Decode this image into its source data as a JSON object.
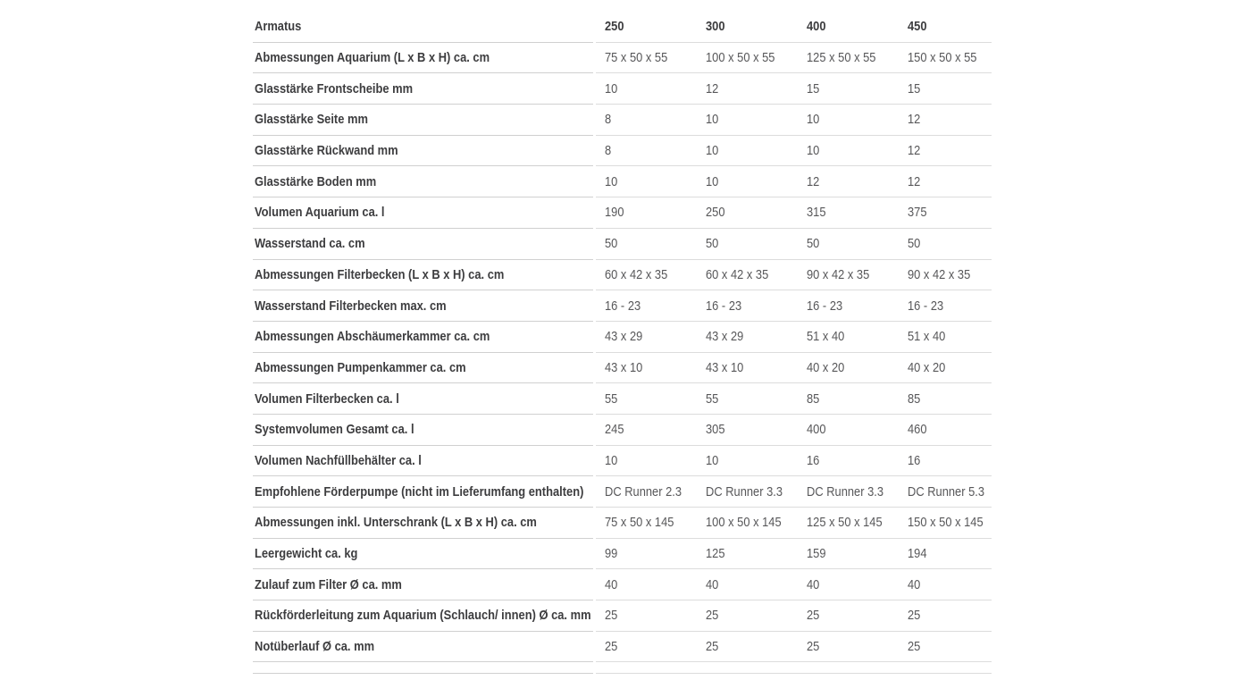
{
  "header": {
    "label": "Armatus",
    "columns": [
      "250",
      "300",
      "400",
      "450"
    ]
  },
  "rows": [
    {
      "label": "Abmessungen Aquarium (L x B x H) ca. cm",
      "values": [
        "75 x 50 x 55",
        "100 x 50 x 55",
        "125 x 50 x 55",
        "150 x 50 x 55"
      ]
    },
    {
      "label": "Glasstärke Frontscheibe mm",
      "values": [
        "10",
        "12",
        "15",
        "15"
      ]
    },
    {
      "label": "Glasstärke Seite mm",
      "values": [
        "8",
        "10",
        "10",
        "12"
      ]
    },
    {
      "label": "Glasstärke Rückwand mm",
      "values": [
        "8",
        "10",
        "10",
        "12"
      ]
    },
    {
      "label": "Glasstärke Boden mm",
      "values": [
        "10",
        "10",
        "12",
        "12"
      ]
    },
    {
      "label": "Volumen Aquarium ca. l",
      "values": [
        "190",
        "250",
        "315",
        "375"
      ]
    },
    {
      "label": "Wasserstand ca. cm",
      "values": [
        "50",
        "50",
        "50",
        "50"
      ]
    },
    {
      "label": "Abmessungen Filterbecken (L x B x H) ca. cm",
      "values": [
        "60 x 42 x 35",
        "60 x 42 x 35",
        "90 x 42 x 35",
        "90 x 42 x 35"
      ]
    },
    {
      "label": "Wasserstand Filterbecken max. cm",
      "values": [
        "16 - 23",
        "16 - 23",
        "16 - 23",
        "16 - 23"
      ]
    },
    {
      "label": "Abmessungen Abschäumerkammer ca. cm",
      "values": [
        "43 x 29",
        "43 x 29",
        "51 x 40",
        "51 x 40"
      ]
    },
    {
      "label": "Abmessungen Pumpenkammer ca. cm",
      "values": [
        "43 x 10",
        "43 x 10",
        "40 x 20",
        "40 x 20"
      ]
    },
    {
      "label": "Volumen Filterbecken ca. l",
      "values": [
        "55",
        "55",
        "85",
        "85"
      ]
    },
    {
      "label": "Systemvolumen Gesamt ca. l",
      "values": [
        "245",
        "305",
        "400",
        "460"
      ]
    },
    {
      "label": "Volumen Nachfüllbehälter ca. l",
      "values": [
        "10",
        "10",
        "16",
        "16"
      ]
    },
    {
      "label": "Empfohlene Förderpumpe (nicht im Lieferumfang enthalten)",
      "values": [
        "DC Runner 2.3",
        "DC Runner 3.3",
        "DC Runner 3.3",
        "DC Runner 5.3"
      ]
    },
    {
      "label": "Abmessungen inkl. Unterschrank (L x B x H) ca. cm",
      "values": [
        "75 x 50 x 145",
        "100 x 50 x 145",
        "125 x 50 x 145",
        "150 x 50 x 145"
      ]
    },
    {
      "label": "Leergewicht ca. kg",
      "values": [
        "99",
        "125",
        "159",
        "194"
      ]
    },
    {
      "label": "Zulauf zum Filter Ø ca. mm",
      "values": [
        "40",
        "40",
        "40",
        "40"
      ]
    },
    {
      "label": "Rückförderleitung zum Aquarium (Schlauch/ innen) Ø ca. mm",
      "values": [
        "25",
        "25",
        "25",
        "25"
      ]
    },
    {
      "label": "Notüberlauf Ø ca. mm",
      "values": [
        "25",
        "25",
        "25",
        "25"
      ]
    }
  ],
  "colors": {
    "label_text": "#3d3d3f",
    "value_text": "#58585a",
    "label_divider": "#d0d0d0",
    "value_divider": "#dcdcdc",
    "background": "#ffffff"
  }
}
